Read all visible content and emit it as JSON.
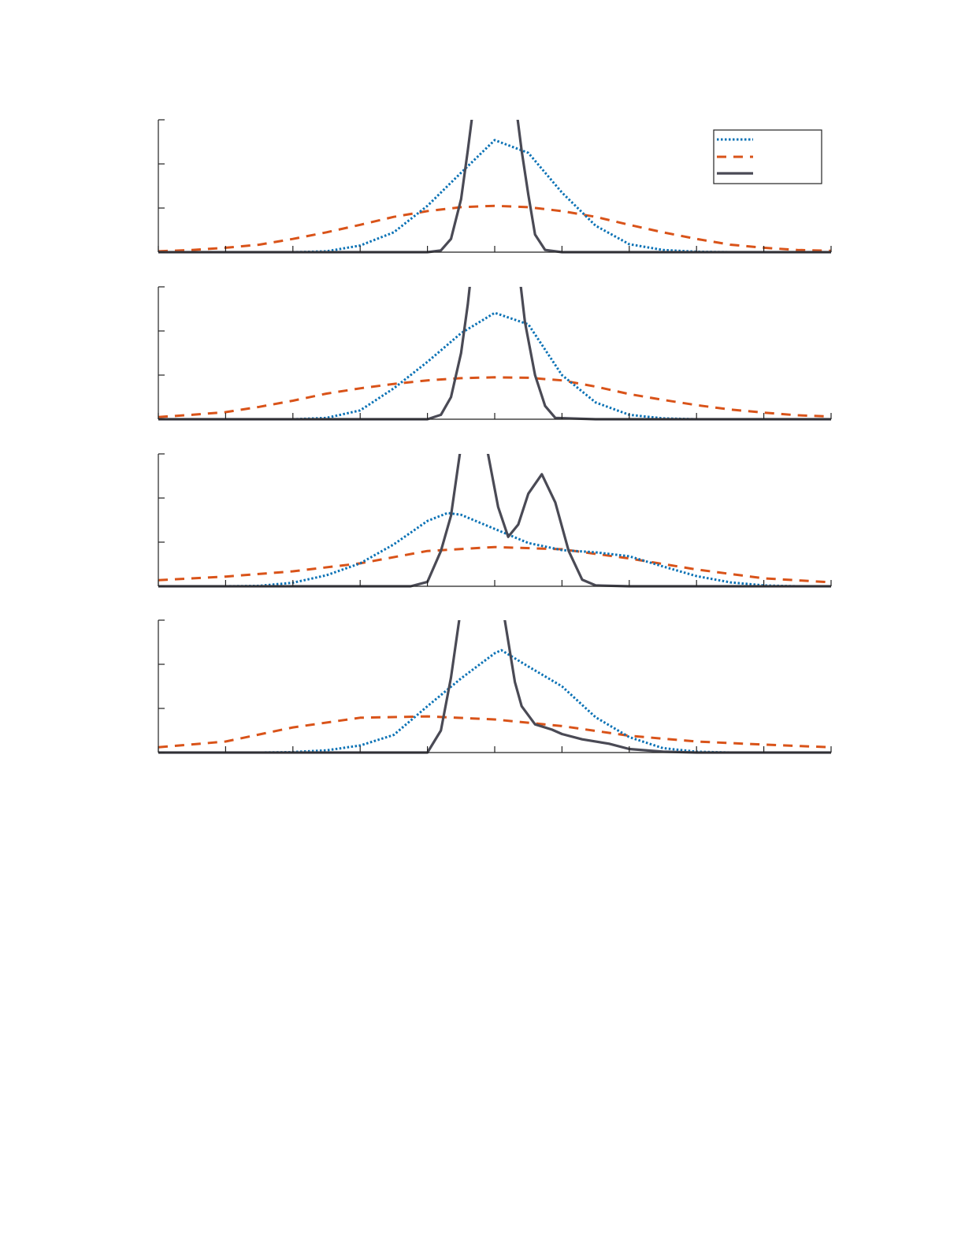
{
  "chart_data": [
    {
      "type": "line",
      "xlim": [
        0,
        10
      ],
      "ylim": [
        0,
        3
      ],
      "xticks": [
        0,
        1,
        2,
        3,
        4,
        5,
        6,
        7,
        8,
        9,
        10
      ],
      "yticks": [
        0,
        1,
        2,
        3
      ],
      "grid": false,
      "legend": {
        "placement": "top-right",
        "entries": [
          "",
          "",
          ""
        ]
      },
      "series": [
        {
          "style": "dotted",
          "color": "#0b72b5",
          "x": [
            0,
            0.5,
            1,
            1.5,
            2,
            2.5,
            3,
            3.5,
            4,
            4.5,
            5,
            5.5,
            6,
            6.5,
            7,
            7.5,
            8,
            8.5,
            9,
            9.5,
            10
          ],
          "y": [
            0,
            0,
            0,
            0,
            0,
            0.02,
            0.15,
            0.45,
            1.05,
            1.8,
            2.54,
            2.25,
            1.35,
            0.6,
            0.18,
            0.05,
            0.01,
            0,
            0,
            0,
            0
          ]
        },
        {
          "style": "dashed",
          "color": "#d95319",
          "x": [
            0,
            0.5,
            1,
            1.5,
            2,
            2.5,
            3,
            3.5,
            4,
            4.5,
            5,
            5.5,
            6,
            6.5,
            7,
            7.5,
            8,
            8.5,
            9,
            9.5,
            10
          ],
          "y": [
            0.02,
            0.05,
            0.1,
            0.17,
            0.3,
            0.45,
            0.62,
            0.8,
            0.93,
            1.02,
            1.05,
            1.02,
            0.93,
            0.8,
            0.62,
            0.45,
            0.3,
            0.17,
            0.1,
            0.05,
            0.03
          ]
        },
        {
          "style": "solid",
          "color": "#4a4a55",
          "x": [
            0,
            3.5,
            4,
            4.2,
            4.35,
            4.5,
            4.6,
            4.7,
            5,
            5.3,
            5.4,
            5.5,
            5.6,
            5.75,
            6,
            6.5,
            10
          ],
          "y": [
            0,
            0,
            0,
            0.04,
            0.3,
            1.2,
            2.3,
            3.5,
            6,
            3.5,
            2.3,
            1.3,
            0.4,
            0.05,
            0,
            0,
            0
          ]
        }
      ]
    },
    {
      "type": "line",
      "xlim": [
        0,
        10
      ],
      "ylim": [
        0,
        3
      ],
      "xticks": [
        0,
        1,
        2,
        3,
        4,
        5,
        6,
        7,
        8,
        9,
        10
      ],
      "yticks": [
        0,
        1,
        2,
        3
      ],
      "grid": false,
      "series": [
        {
          "style": "dotted",
          "color": "#0b72b5",
          "x": [
            0,
            0.5,
            1,
            1.5,
            2,
            2.5,
            3,
            3.5,
            4,
            4.5,
            5,
            5.5,
            6,
            6.5,
            7,
            7.5,
            8,
            8.5,
            9,
            9.5,
            10
          ],
          "y": [
            0,
            0,
            0,
            0,
            0,
            0.03,
            0.2,
            0.7,
            1.3,
            1.95,
            2.41,
            2.15,
            1.0,
            0.38,
            0.1,
            0.02,
            0,
            0,
            0,
            0,
            0
          ]
        },
        {
          "style": "dashed",
          "color": "#d95319",
          "x": [
            0,
            0.5,
            1,
            1.5,
            2,
            2.5,
            3,
            3.5,
            4,
            4.5,
            5,
            5.5,
            6,
            6.5,
            7,
            7.5,
            8,
            8.5,
            9,
            9.5,
            10
          ],
          "y": [
            0.05,
            0.1,
            0.16,
            0.28,
            0.42,
            0.58,
            0.7,
            0.8,
            0.88,
            0.93,
            0.95,
            0.94,
            0.88,
            0.74,
            0.57,
            0.44,
            0.32,
            0.22,
            0.15,
            0.09,
            0.06
          ]
        },
        {
          "style": "solid",
          "color": "#4a4a55",
          "x": [
            0,
            3.5,
            4,
            4.2,
            4.35,
            4.5,
            4.6,
            4.7,
            5,
            5.35,
            5.45,
            5.6,
            5.75,
            5.9,
            6.5,
            10
          ],
          "y": [
            0,
            0,
            0,
            0.1,
            0.5,
            1.5,
            2.6,
            4,
            6,
            3.5,
            2.2,
            1.0,
            0.3,
            0.03,
            0,
            0
          ]
        }
      ]
    },
    {
      "type": "line",
      "xlim": [
        0,
        10
      ],
      "ylim": [
        0,
        3
      ],
      "xticks": [
        0,
        1,
        2,
        3,
        4,
        5,
        6,
        7,
        8,
        9,
        10
      ],
      "yticks": [
        0,
        1,
        2,
        3
      ],
      "grid": false,
      "series": [
        {
          "style": "dotted",
          "color": "#0b72b5",
          "x": [
            0,
            0.5,
            1,
            1.5,
            2,
            2.5,
            3,
            3.5,
            4,
            4.3,
            4.5,
            5,
            5.5,
            6,
            6.5,
            7,
            7.5,
            8,
            8.5,
            9,
            9.5,
            10
          ],
          "y": [
            0,
            0,
            0,
            0.01,
            0.08,
            0.25,
            0.52,
            0.95,
            1.48,
            1.66,
            1.62,
            1.3,
            0.98,
            0.82,
            0.77,
            0.68,
            0.45,
            0.23,
            0.09,
            0.02,
            0,
            0
          ]
        },
        {
          "style": "dashed",
          "color": "#d95319",
          "x": [
            0,
            1,
            2,
            3,
            4,
            5,
            6,
            7,
            8,
            9,
            10
          ],
          "y": [
            0.14,
            0.22,
            0.34,
            0.52,
            0.8,
            0.89,
            0.84,
            0.63,
            0.38,
            0.18,
            0.09
          ]
        },
        {
          "style": "solid",
          "color": "#4a4a55",
          "x": [
            0,
            3.5,
            3.75,
            4,
            4.2,
            4.35,
            4.5,
            4.65,
            4.9,
            5.05,
            5.2,
            5.35,
            5.5,
            5.7,
            5.9,
            6.1,
            6.3,
            6.5,
            7,
            10
          ],
          "y": [
            0,
            0,
            0,
            0.1,
            0.8,
            1.6,
            3.2,
            4.5,
            3.0,
            1.8,
            1.12,
            1.4,
            2.1,
            2.54,
            1.9,
            0.8,
            0.15,
            0.02,
            0,
            0
          ]
        }
      ]
    },
    {
      "type": "line",
      "xlim": [
        0,
        10
      ],
      "ylim": [
        0,
        3
      ],
      "xticks": [
        0,
        1,
        2,
        3,
        4,
        5,
        6,
        7,
        8,
        9,
        10
      ],
      "yticks": [
        0,
        1,
        2,
        3
      ],
      "grid": false,
      "series": [
        {
          "style": "dotted",
          "color": "#0b72b5",
          "x": [
            0,
            0.5,
            1,
            1.5,
            2,
            2.5,
            3,
            3.5,
            4,
            4.5,
            5,
            5.1,
            5.5,
            6,
            6.5,
            7,
            7.5,
            8,
            8.5,
            9,
            10
          ],
          "y": [
            0,
            0,
            0,
            0,
            0.01,
            0.05,
            0.16,
            0.4,
            1.05,
            1.68,
            2.25,
            2.32,
            1.95,
            1.5,
            0.8,
            0.35,
            0.1,
            0.02,
            0,
            0,
            0
          ]
        },
        {
          "style": "dashed",
          "color": "#d95319",
          "x": [
            0,
            1,
            2,
            3,
            4,
            5,
            6,
            7,
            8,
            9,
            10
          ],
          "y": [
            0.12,
            0.25,
            0.57,
            0.79,
            0.82,
            0.75,
            0.6,
            0.38,
            0.25,
            0.18,
            0.12
          ]
        },
        {
          "style": "solid",
          "color": "#4a4a55",
          "x": [
            0,
            3.5,
            4,
            4.2,
            4.35,
            4.5,
            4.7,
            5,
            5.15,
            5.3,
            5.4,
            5.6,
            5.85,
            6,
            6.3,
            6.7,
            7,
            7.5,
            8,
            9,
            10
          ],
          "y": [
            0,
            0,
            0,
            0.5,
            1.7,
            3.3,
            4.5,
            4,
            3,
            1.6,
            1.05,
            0.64,
            0.52,
            0.42,
            0.3,
            0.2,
            0.08,
            0.02,
            0,
            0,
            0
          ]
        }
      ]
    }
  ]
}
